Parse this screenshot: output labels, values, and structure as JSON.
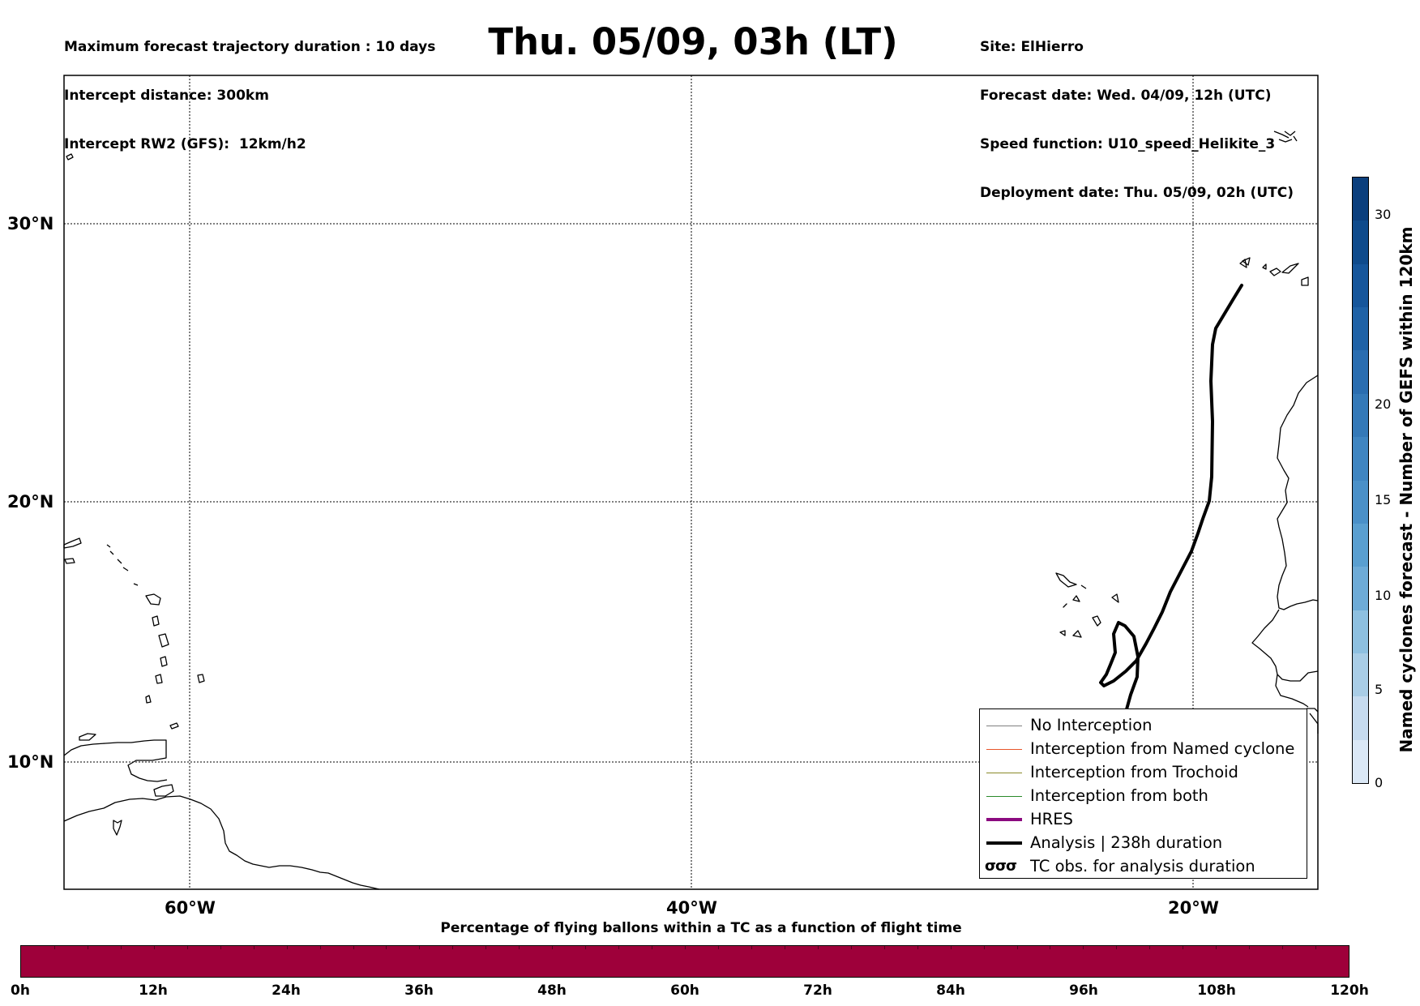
{
  "header_left": {
    "max_duration": "Maximum forecast trajectory duration : 10 days",
    "intercept_distance": "Intercept distance: 300km",
    "intercept_rw2": "Intercept RW2 (GFS):  12km/h2"
  },
  "title": "Thu. 05/09, 03h (LT)",
  "header_right": {
    "site": "Site: ElHierro",
    "forecast_date": "Forecast date: Wed. 04/09, 12h (UTC)",
    "speed_function": "Speed function: U10_speed_Helikite_3",
    "deployment_date": "Deployment date: Thu. 05/09, 02h (UTC)"
  },
  "map": {
    "lon_range": [
      -65,
      15
    ],
    "lat_range": [
      5.3,
      35.0
    ],
    "lon_ticks": [
      "60°W",
      "40°W",
      "20°W"
    ],
    "lat_ticks": [
      "30°N",
      "20°N",
      "10°N"
    ],
    "grid": "dotted",
    "trajectory_color": "#000000"
  },
  "legend": {
    "placement": "lower-right",
    "items": [
      {
        "label": "No Interception",
        "color": "#808080",
        "style": "thin"
      },
      {
        "label": "Interception from Named cyclone",
        "color": "#e8562a",
        "style": "thin"
      },
      {
        "label": "Interception from Trochoid",
        "color": "#8a8a2a",
        "style": "thin"
      },
      {
        "label": "Interception from both",
        "color": "#2a8a2a",
        "style": "thin"
      },
      {
        "label": "HRES",
        "color": "#8b0a7f",
        "style": "thick"
      },
      {
        "label": "Analysis | 238h duration",
        "color": "#000000",
        "style": "thick"
      },
      {
        "label": "TC obs. for analysis duration",
        "glyph": "σσσ",
        "style": "glyph"
      }
    ]
  },
  "colorbar_right": {
    "label": "Named cyclones forecast - Number of GEFS within 120km",
    "ticks": [
      "0",
      "5",
      "10",
      "15",
      "20",
      "30"
    ],
    "range": [
      0,
      32
    ],
    "colormap": "Blues"
  },
  "colorbar_bottom": {
    "title": "Percentage of flying ballons within a TC as a function of flight time",
    "ticks": [
      "0h",
      "12h",
      "24h",
      "36h",
      "48h",
      "60h",
      "72h",
      "84h",
      "96h",
      "108h",
      "120h"
    ],
    "color": "#9e003a"
  }
}
